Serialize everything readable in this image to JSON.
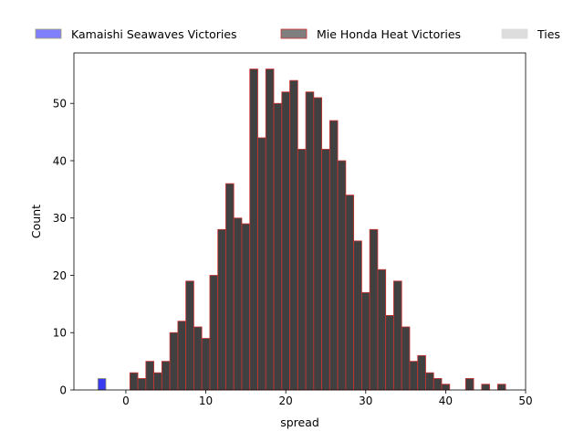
{
  "chart_data": {
    "type": "bar",
    "title": "",
    "xlabel": "spread",
    "ylabel": "Count",
    "xlim": [
      -6.5,
      50
    ],
    "ylim": [
      0,
      58.8
    ],
    "xticks": [
      0,
      10,
      20,
      30,
      40,
      50
    ],
    "yticks": [
      0,
      10,
      20,
      30,
      40,
      50
    ],
    "bin_width": 1,
    "grid": false,
    "legend": "top",
    "series": [
      {
        "name": "Kamaishi Seawaves Victories",
        "color": "#7f7fff",
        "edge": "#a0a070",
        "bars": [
          {
            "x": -3,
            "value": 2
          }
        ]
      },
      {
        "name": "Mie Honda Heat Victories",
        "color": "#7f7f7f",
        "edge": "#cc3333",
        "bars": [
          {
            "x": 1,
            "value": 3
          },
          {
            "x": 2,
            "value": 2
          },
          {
            "x": 3,
            "value": 5
          },
          {
            "x": 4,
            "value": 3
          },
          {
            "x": 5,
            "value": 5
          },
          {
            "x": 6,
            "value": 10
          },
          {
            "x": 7,
            "value": 12
          },
          {
            "x": 8,
            "value": 19
          },
          {
            "x": 9,
            "value": 11
          },
          {
            "x": 10,
            "value": 9
          },
          {
            "x": 11,
            "value": 20
          },
          {
            "x": 12,
            "value": 28
          },
          {
            "x": 13,
            "value": 36
          },
          {
            "x": 14,
            "value": 30
          },
          {
            "x": 15,
            "value": 29
          },
          {
            "x": 16,
            "value": 56
          },
          {
            "x": 17,
            "value": 44
          },
          {
            "x": 18,
            "value": 56
          },
          {
            "x": 19,
            "value": 50
          },
          {
            "x": 20,
            "value": 52
          },
          {
            "x": 21,
            "value": 54
          },
          {
            "x": 22,
            "value": 42
          },
          {
            "x": 23,
            "value": 52
          },
          {
            "x": 24,
            "value": 51
          },
          {
            "x": 25,
            "value": 42
          },
          {
            "x": 26,
            "value": 47
          },
          {
            "x": 27,
            "value": 40
          },
          {
            "x": 28,
            "value": 34
          },
          {
            "x": 29,
            "value": 26
          },
          {
            "x": 30,
            "value": 17
          },
          {
            "x": 31,
            "value": 28
          },
          {
            "x": 32,
            "value": 21
          },
          {
            "x": 33,
            "value": 13
          },
          {
            "x": 34,
            "value": 19
          },
          {
            "x": 35,
            "value": 11
          },
          {
            "x": 36,
            "value": 5
          },
          {
            "x": 37,
            "value": 6
          },
          {
            "x": 38,
            "value": 3
          },
          {
            "x": 39,
            "value": 2
          },
          {
            "x": 40,
            "value": 1
          },
          {
            "x": 43,
            "value": 2
          },
          {
            "x": 45,
            "value": 1
          },
          {
            "x": 47,
            "value": 1
          }
        ]
      },
      {
        "name": "Ties",
        "color": "#dddddd",
        "edge": "#dddddd",
        "bars": []
      }
    ]
  }
}
